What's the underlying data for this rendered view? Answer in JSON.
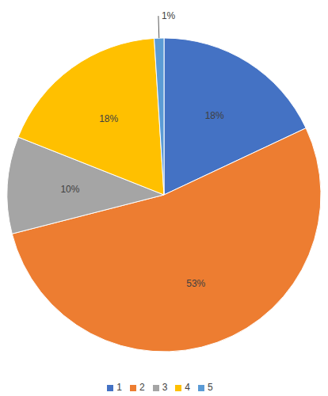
{
  "chart_data": {
    "type": "pie",
    "categories": [
      "1",
      "2",
      "3",
      "4",
      "5"
    ],
    "values": [
      18,
      53,
      10,
      18,
      1
    ],
    "value_labels": [
      "18%",
      "53%",
      "10%",
      "18%",
      "1%"
    ],
    "colors": [
      "#4472c4",
      "#ed7d31",
      "#a5a5a5",
      "#ffc000",
      "#5b9bd5"
    ],
    "data_labels": true,
    "legend": "bottom"
  }
}
